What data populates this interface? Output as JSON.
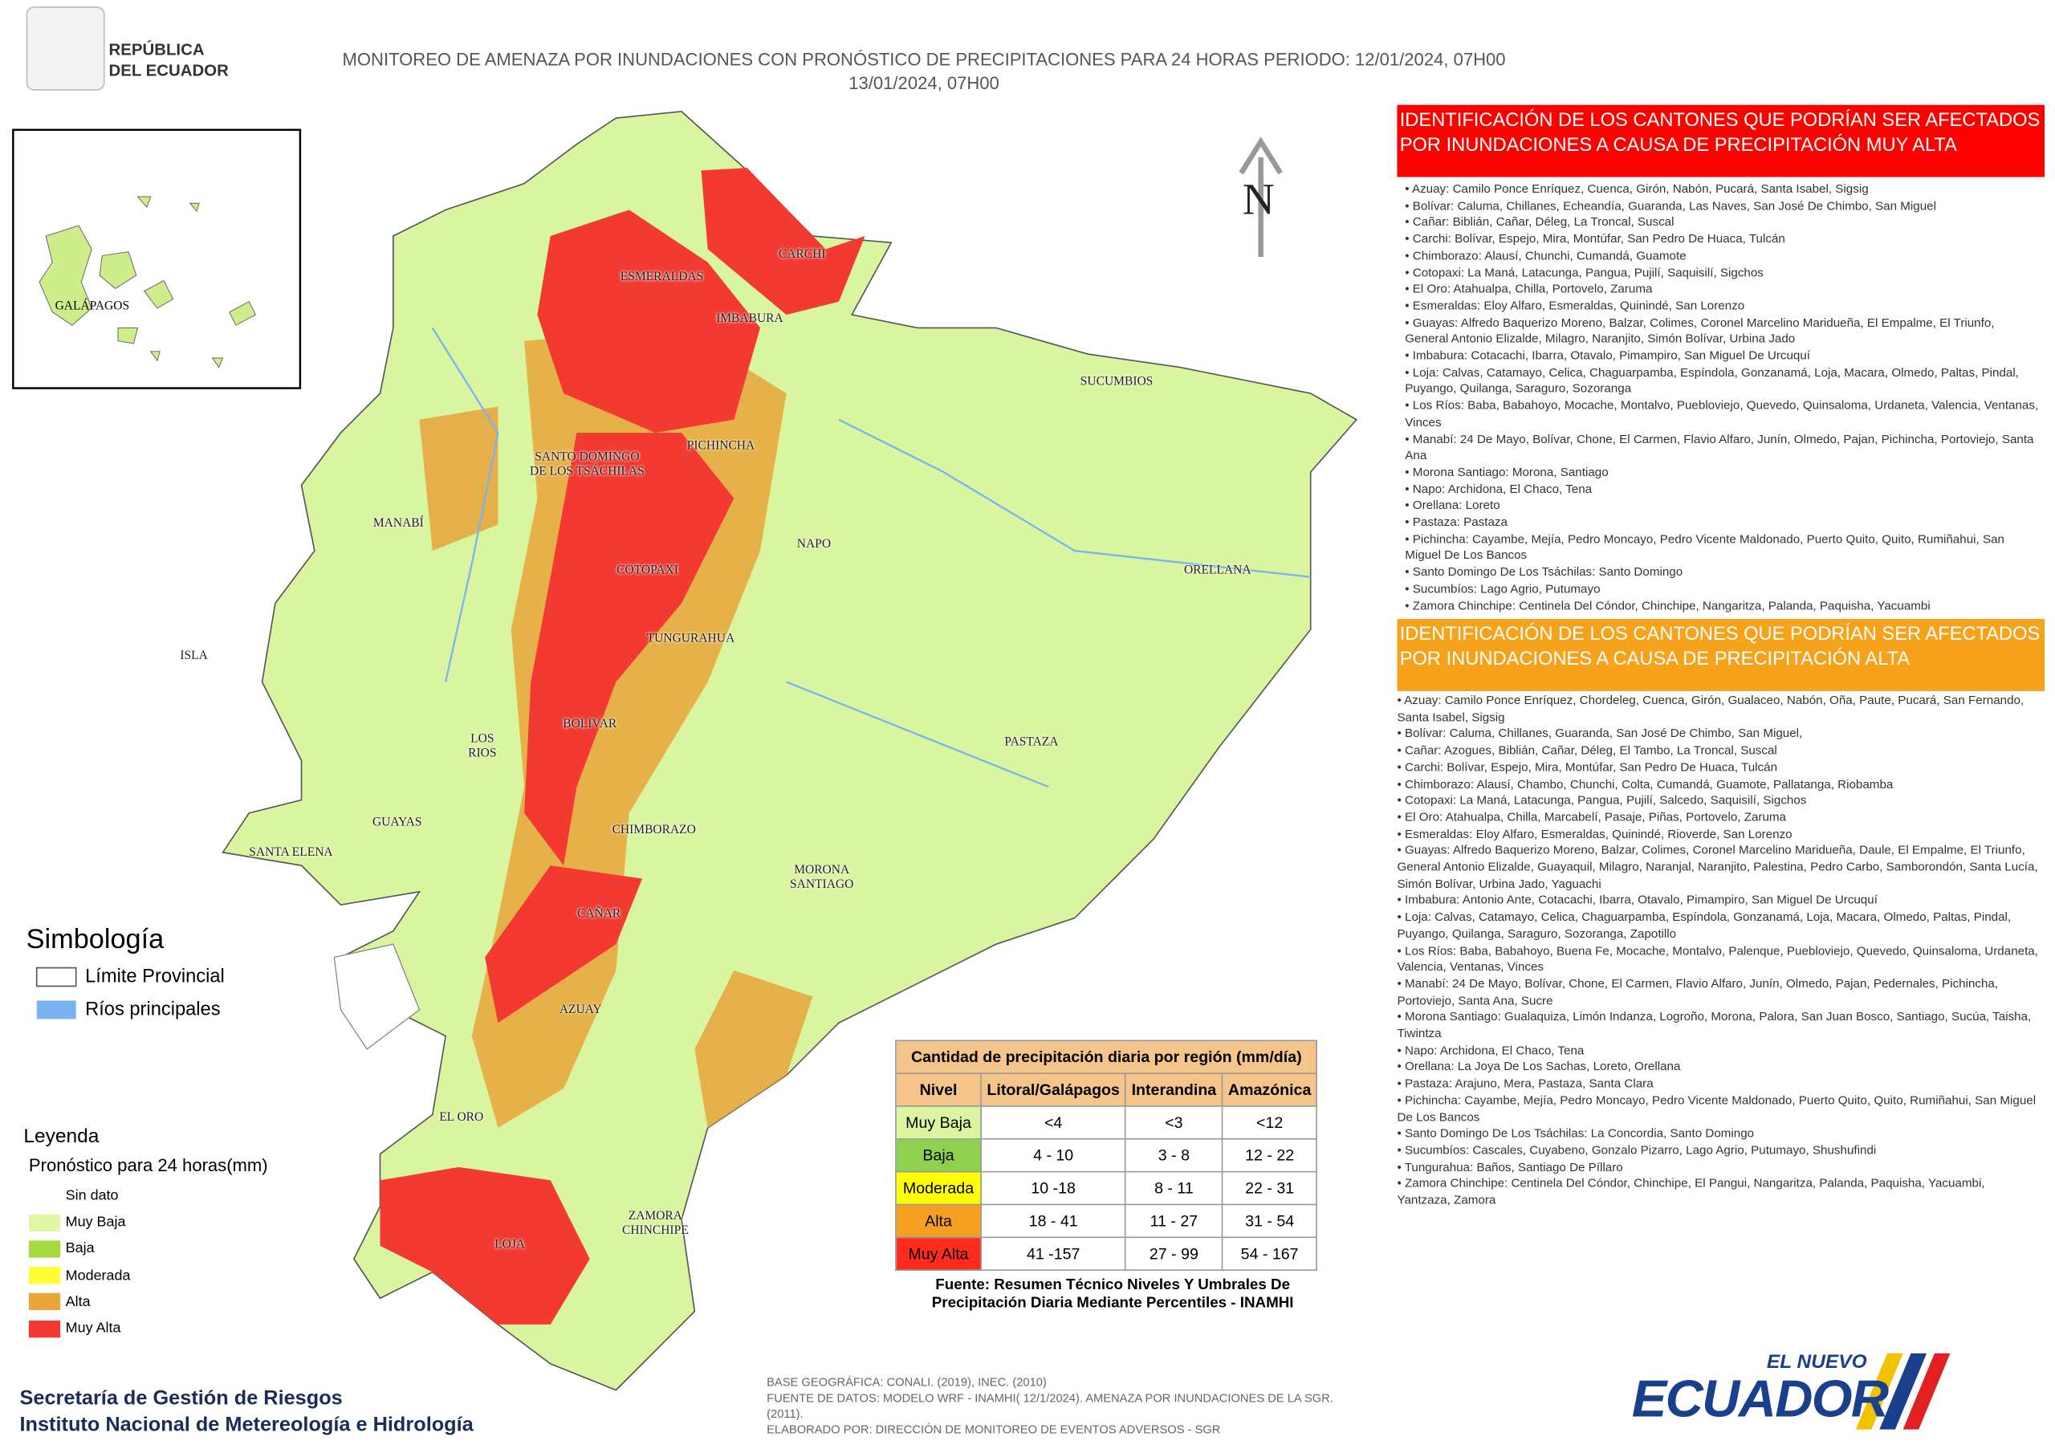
{
  "header": {
    "logo_lines": [
      "REPÚBLICA",
      "DEL ECUADOR"
    ],
    "title_lines": [
      "MONITOREO DE AMENAZA POR INUNDACIONES  CON PRONÓSTICO DE  PRECIPITACIONES PARA 24 HORAS  PERIODO: 12/01/2024, 07H00",
      "13/01/2024, 07H00"
    ]
  },
  "inset": {
    "label": "GALÁPAGOS"
  },
  "north": "N",
  "map_labels": [
    "ESMERALDAS",
    "CARCHI",
    "IMBABURA",
    "SUCUMBIOS",
    "SANTO DOMINGO DE LOS TSÁCHILAS",
    "PICHINCHA",
    "MANABÍ",
    "NAPO",
    "ORELLANA",
    "COTOPAXI",
    "ISLA",
    "TUNGURAHUA",
    "BOLIVAR",
    "LOS RIOS",
    "PASTAZA",
    "GUAYAS",
    "SANTA ELENA",
    "CHIMBORAZO",
    "MORONA SANTIAGO",
    "CAÑAR",
    "AZUAY",
    "EL ORO",
    "ZAMORA CHINCHIPE",
    "LOJA"
  ],
  "symbology": {
    "title": "Simbología",
    "items": [
      {
        "label": "Límite Provincial",
        "color": "#ffffff"
      },
      {
        "label": "Ríos principales",
        "color": "#7ab4f0"
      }
    ]
  },
  "legend": {
    "title": "Leyenda",
    "subtitle": "Pronóstico para 24 horas(mm)",
    "items": [
      {
        "label": "Sin dato",
        "color": "#ffffff"
      },
      {
        "label": "Muy Baja",
        "color": "#e1f7a3"
      },
      {
        "label": "Baja",
        "color": "#a5db3c"
      },
      {
        "label": "Moderada",
        "color": "#ffff33"
      },
      {
        "label": "Alta",
        "color": "#e8a53a"
      },
      {
        "label": "Muy Alta",
        "color": "#f23a32"
      }
    ]
  },
  "table": {
    "title": "Cantidad de precipitación diaria por región (mm/día)",
    "header": [
      "Nivel",
      "Litoral/Galápagos",
      "Interandina",
      "Amazónica"
    ],
    "rows": [
      {
        "level": "Muy Baja",
        "color": "#dcf5a0",
        "cells": [
          "<4",
          "<3",
          "<12"
        ]
      },
      {
        "level": "Baja",
        "color": "#8fd14f",
        "cells": [
          "4 - 10",
          "3 - 8",
          "12 - 22"
        ]
      },
      {
        "level": "Moderada",
        "color": "#ffff00",
        "cells": [
          "10 -18",
          "8 - 11",
          "22 - 31"
        ]
      },
      {
        "level": "Alta",
        "color": "#f5a023",
        "cells": [
          "18 - 41",
          "11 - 27",
          "31 - 54"
        ]
      },
      {
        "level": "Muy Alta",
        "color": "#ff2b1c",
        "cells": [
          "41 -157",
          "27 - 99",
          "54 - 167"
        ]
      }
    ],
    "source": "Fuente: Resumen Técnico Niveles Y Umbrales De Precipitación Diaria Mediante Percentiles - INAMHI"
  },
  "panels": [
    {
      "title": "IDENTIFICACIÓN DE LOS CANTONES QUE PODRÍAN SER AFECTADOS POR INUNDACIONES  A CAUSA DE PRECIPITACIÓN MUY ALTA",
      "color": "#ff0000",
      "items": [
        "Azuay: Camilo Ponce Enríquez, Cuenca, Girón, Nabón, Pucará, Santa Isabel, Sigsig",
        "Bolívar: Caluma, Chillanes, Echeandía, Guaranda, Las Naves, San José De Chimbo, San Miguel",
        "Cañar: Biblián, Cañar, Déleg, La Troncal, Suscal",
        "Carchi: Bolívar, Espejo, Mira, Montúfar, San Pedro De Huaca, Tulcán",
        "Chimborazo: Alausí, Chunchi, Cumandá, Guamote",
        "Cotopaxi: La Maná, Latacunga, Pangua, Pujilí, Saquisilí, Sigchos",
        "El Oro: Atahualpa, Chilla, Portovelo, Zaruma",
        "Esmeraldas: Eloy Alfaro, Esmeraldas, Quinindé, San Lorenzo",
        "Guayas: Alfredo Baquerizo Moreno, Balzar, Colimes, Coronel Marcelino Maridueña, El Empalme, El Triunfo, General Antonio Elizalde, Milagro, Naranjito, Simón Bolívar, Urbina Jado",
        "Imbabura: Cotacachi, Ibarra, Otavalo, Pimampiro, San Miguel De Urcuquí",
        "Loja: Calvas, Catamayo, Celica, Chaguarpamba, Espíndola, Gonzanamá, Loja, Macara, Olmedo, Paltas, Pindal, Puyango, Quilanga, Saraguro, Sozoranga",
        "Los Ríos: Baba, Babahoyo, Mocache, Montalvo, Puebloviejo, Quevedo, Quinsaloma, Urdaneta, Valencia, Ventanas, Vinces",
        "Manabí: 24 De Mayo, Bolívar, Chone, El Carmen, Flavio Alfaro, Junín, Olmedo, Pajan, Pichincha, Portoviejo, Santa Ana",
        "Morona Santiago: Morona, Santiago",
        "Napo: Archidona, El Chaco, Tena",
        "Orellana: Loreto",
        "Pastaza: Pastaza",
        "Pichincha: Cayambe, Mejía, Pedro Moncayo, Pedro Vicente Maldonado, Puerto Quito, Quito, Rumiñahui, San Miguel De Los Bancos",
        "Santo Domingo De Los Tsáchilas: Santo Domingo",
        "Sucumbíos: Lago Agrio, Putumayo",
        "Zamora Chinchipe: Centinela Del Cóndor, Chinchipe, Nangaritza, Palanda, Paquisha, Yacuambi"
      ]
    },
    {
      "title": "IDENTIFICACIÓN DE LOS CANTONES QUE  PODRÍAN SER AFECTADOS POR INUNDACIONES  A CAUSA DE PRECIPITACIÓN  ALTA",
      "color": "#f7a21b",
      "items": [
        "Azuay: Camilo Ponce Enríquez, Chordeleg, Cuenca, Girón, Gualaceo, Nabón, Oña, Paute, Pucará, San Fernando, Santa Isabel, Sigsig",
        "Bolívar: Caluma, Chillanes, Guaranda, San José De Chimbo, San Miguel,",
        "Cañar: Azogues, Biblián, Cañar, Déleg, El Tambo, La Troncal, Suscal",
        "Carchi: Bolívar, Espejo, Mira, Montúfar, San Pedro De Huaca, Tulcán",
        "Chimborazo: Alausí, Chambo, Chunchi, Colta, Cumandá, Guamote, Pallatanga, Riobamba",
        "Cotopaxi: La Maná, Latacunga, Pangua, Pujilí, Salcedo, Saquisilí, Sigchos",
        "El Oro: Atahualpa, Chilla, Marcabelí, Pasaje, Piñas, Portovelo, Zaruma",
        "Esmeraldas: Eloy Alfaro, Esmeraldas, Quinindé, Rioverde, San Lorenzo",
        "Guayas: Alfredo Baquerizo Moreno, Balzar, Colimes, Coronel Marcelino Maridueña, Daule, El Empalme, El Triunfo, General Antonio Elizalde, Guayaquil, Milagro, Naranjal, Naranjito, Palestina, Pedro Carbo, Samborondón, Santa Lucía, Simón Bolívar, Urbina Jado, Yaguachi",
        "Imbabura: Antonio Ante, Cotacachi, Ibarra, Otavalo, Pimampiro, San Miguel De Urcuquí",
        "Loja: Calvas, Catamayo, Celica, Chaguarpamba, Espíndola, Gonzanamá, Loja, Macara, Olmedo, Paltas, Pindal, Puyango, Quilanga, Saraguro, Sozoranga, Zapotillo",
        "Los Ríos: Baba, Babahoyo, Buena Fe, Mocache, Montalvo, Palenque, Puebloviejo, Quevedo, Quinsaloma, Urdaneta, Valencia, Ventanas, Vinces",
        "Manabí: 24 De Mayo, Bolívar, Chone, El Carmen, Flavio Alfaro, Junín, Olmedo, Pajan, Pedernales, Pichincha, Portoviejo, Santa Ana, Sucre",
        "Morona Santiago: Gualaquiza, Limón Indanza, Logroño, Morona, Palora, San Juan Bosco, Santiago, Sucúa, Taisha, Tiwintza",
        "Napo: Archidona, El Chaco, Tena",
        "Orellana: La Joya De Los Sachas, Loreto, Orellana",
        "Pastaza: Arajuno, Mera, Pastaza, Santa Clara",
        "Pichincha: Cayambe, Mejía, Pedro Moncayo, Pedro Vicente Maldonado, Puerto Quito, Quito, Rumiñahui, San Miguel De Los Bancos",
        "Santo Domingo De Los Tsáchilas: La Concordia, Santo Domingo",
        "Sucumbíos: Cascales, Cuyabeno, Gonzalo Pizarro, Lago Agrio, Putumayo, Shushufindi",
        "Tungurahua: Baños, Santiago De Píllaro",
        "Zamora Chinchipe: Centinela Del Cóndor, Chinchipe, El Pangui, Nangaritza, Palanda, Paquisha, Yacuambi, Yantzaza, Zamora"
      ]
    }
  ],
  "footer": {
    "org_lines": [
      "Secretaría de Gestión de Riesgos",
      "Instituto Nacional de Metereología e Hidrología"
    ],
    "credits": [
      "BASE GEOGRÁFICA: CONALI. (2019), INEC. (2010)",
      "FUENTE DE DATOS: MODELO WRF - INAMHI( 12/1/2024).  AMENAZA POR INUNDACIONES DE LA SGR. (2011).",
      "ELABORADO POR: DIRECCIÓN DE MONITOREO DE EVENTOS ADVERSOS - SGR"
    ],
    "brand": [
      "EL NUEVO",
      "ECUADOR"
    ]
  }
}
